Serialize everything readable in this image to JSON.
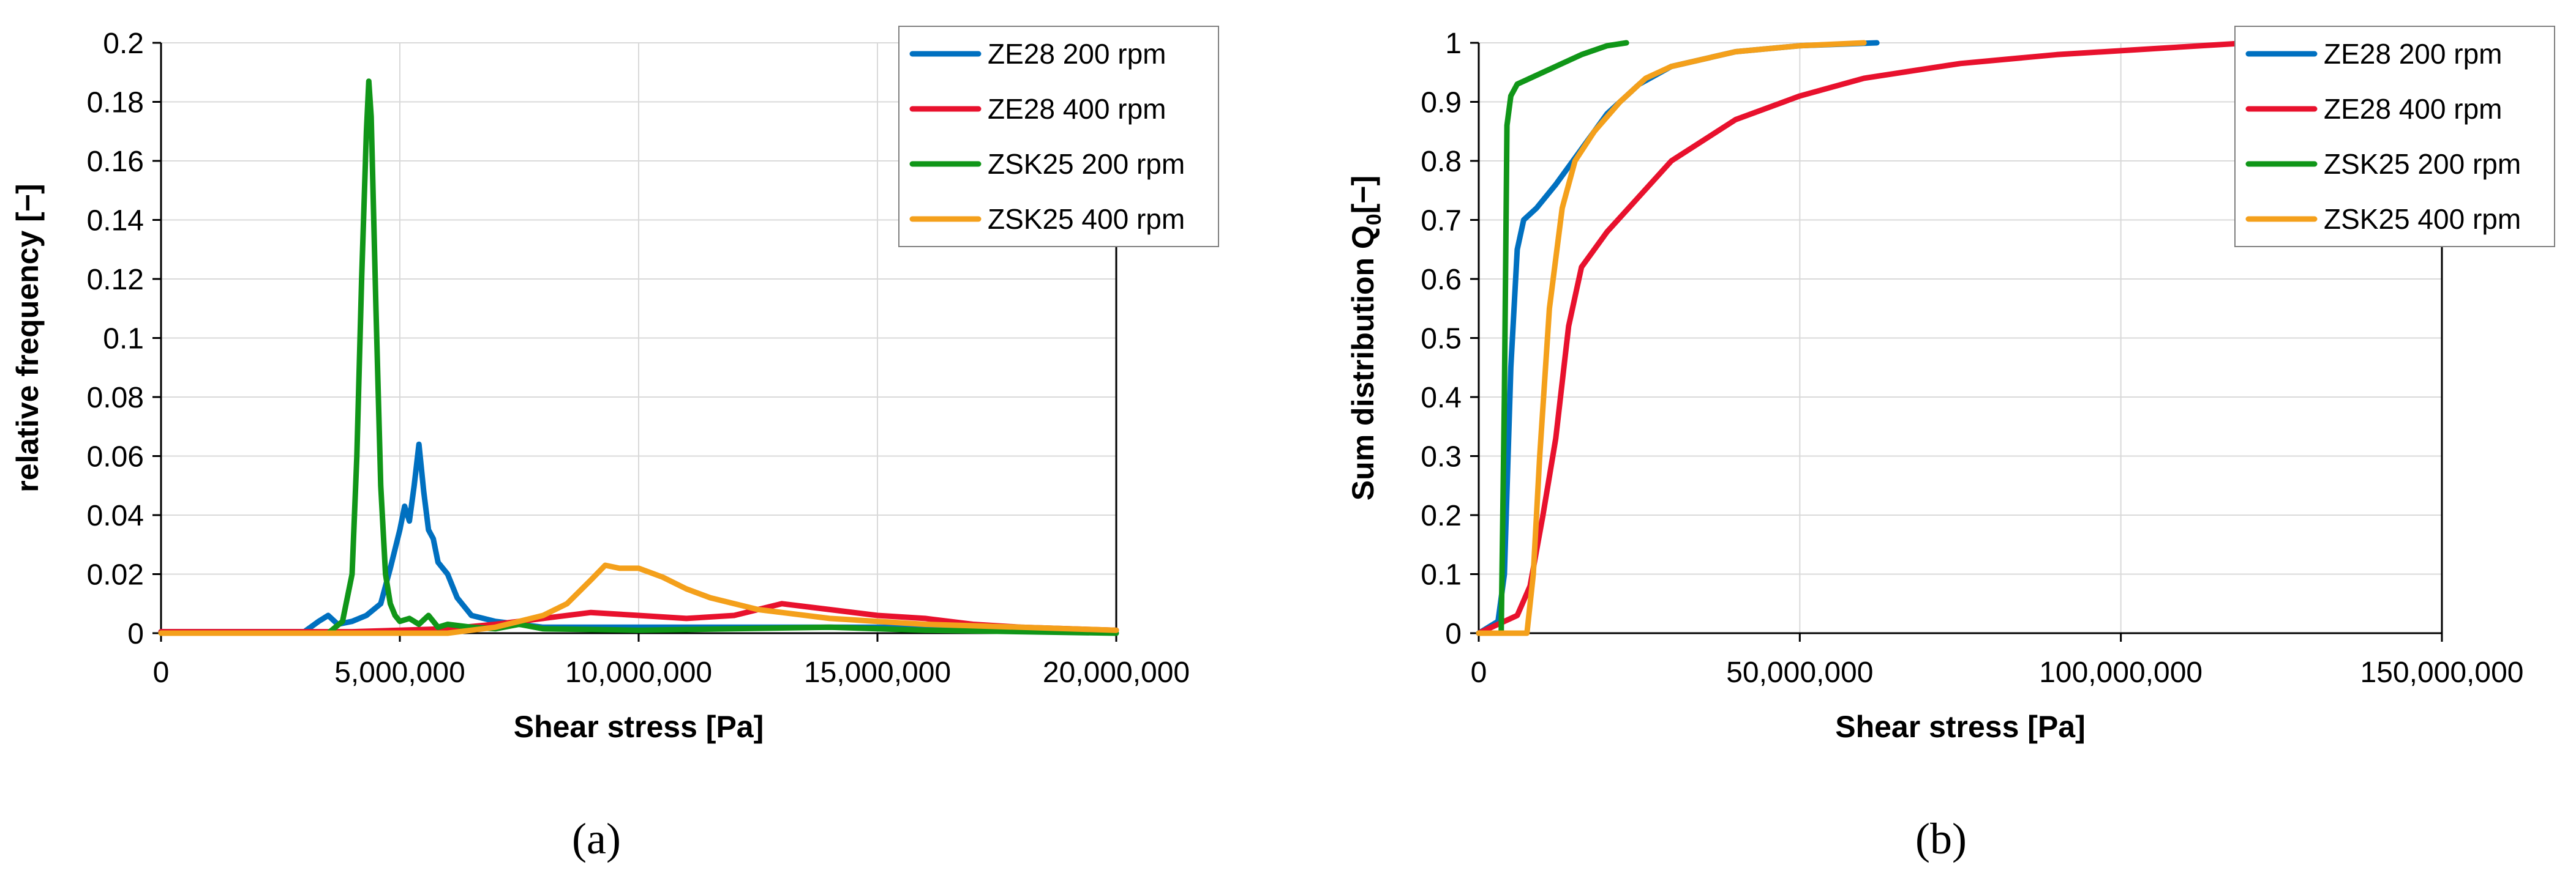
{
  "chart_data": [
    {
      "type": "line",
      "panel_label": "(a)",
      "title": "",
      "xlabel": "Shear stress [Pa]",
      "ylabel": "relative frequency [−]",
      "xlim": [
        0,
        20000000
      ],
      "ylim": [
        0,
        0.2
      ],
      "x_ticks": [
        0,
        5000000,
        10000000,
        15000000,
        20000000
      ],
      "x_tick_labels": [
        "0",
        "5,000,000",
        "10,000,000",
        "15,000,000",
        "20,000,000"
      ],
      "y_ticks": [
        0,
        0.02,
        0.04,
        0.06,
        0.08,
        0.1,
        0.12,
        0.14,
        0.16,
        0.18,
        0.2
      ],
      "y_tick_labels": [
        "0",
        "0.02",
        "0.04",
        "0.06",
        "0.08",
        "0.1",
        "0.12",
        "0.14",
        "0.16",
        "0.18",
        "0.2"
      ],
      "grid": true,
      "legend_position": "top-right",
      "series": [
        {
          "name": "ZE28 200 rpm",
          "color": "#0070C0",
          "x": [
            0,
            3000000,
            3300000,
            3500000,
            3700000,
            4000000,
            4300000,
            4600000,
            4800000,
            5000000,
            5100000,
            5200000,
            5300000,
            5400000,
            5500000,
            5600000,
            5700000,
            5800000,
            6000000,
            6200000,
            6500000,
            7000000,
            7500000,
            8000000,
            10000000,
            12000000,
            14000000,
            16000000,
            18000000,
            20000000
          ],
          "y": [
            0.0005,
            0.0005,
            0.004,
            0.006,
            0.003,
            0.004,
            0.006,
            0.01,
            0.022,
            0.035,
            0.043,
            0.038,
            0.05,
            0.064,
            0.048,
            0.035,
            0.032,
            0.024,
            0.02,
            0.012,
            0.006,
            0.004,
            0.003,
            0.002,
            0.002,
            0.002,
            0.002,
            0.002,
            0.001,
            0.001
          ]
        },
        {
          "name": "ZE28 400 rpm",
          "color": "#E8112D",
          "x": [
            0,
            2000000,
            4000000,
            6000000,
            7000000,
            8000000,
            9000000,
            10000000,
            11000000,
            12000000,
            12500000,
            13000000,
            13500000,
            14000000,
            15000000,
            16000000,
            17000000,
            18000000,
            19000000,
            20000000
          ],
          "y": [
            0.0005,
            0.0005,
            0.0005,
            0.0015,
            0.003,
            0.005,
            0.007,
            0.006,
            0.005,
            0.006,
            0.008,
            0.01,
            0.009,
            0.008,
            0.006,
            0.005,
            0.003,
            0.002,
            0.0015,
            0.001
          ]
        },
        {
          "name": "ZSK25 200 rpm",
          "color": "#109618",
          "x": [
            0,
            3500000,
            3800000,
            4000000,
            4100000,
            4200000,
            4300000,
            4350000,
            4400000,
            4500000,
            4600000,
            4700000,
            4800000,
            4900000,
            5000000,
            5200000,
            5400000,
            5600000,
            5800000,
            6000000,
            6500000,
            7000000,
            7500000,
            8000000,
            10000000,
            14000000,
            16000000,
            20000000
          ],
          "y": [
            0,
            0,
            0.004,
            0.02,
            0.06,
            0.12,
            0.17,
            0.187,
            0.175,
            0.11,
            0.05,
            0.02,
            0.01,
            0.006,
            0.004,
            0.005,
            0.003,
            0.006,
            0.002,
            0.003,
            0.002,
            0.0015,
            0.003,
            0.0015,
            0.001,
            0.002,
            0.001,
            0
          ]
        },
        {
          "name": "ZSK25 400 rpm",
          "color": "#F4A01B",
          "x": [
            0,
            6000000,
            7000000,
            8000000,
            8500000,
            9000000,
            9300000,
            9600000,
            10000000,
            10500000,
            11000000,
            11500000,
            12000000,
            12500000,
            13000000,
            14000000,
            15000000,
            16000000,
            18000000,
            20000000
          ],
          "y": [
            0,
            0,
            0.002,
            0.006,
            0.01,
            0.018,
            0.023,
            0.022,
            0.022,
            0.019,
            0.015,
            0.012,
            0.01,
            0.008,
            0.007,
            0.005,
            0.004,
            0.003,
            0.002,
            0.001
          ]
        }
      ]
    },
    {
      "type": "line",
      "panel_label": "(b)",
      "title": "",
      "xlabel": "Shear stress [Pa]",
      "ylabel": "Sum distribution Q",
      "ylabel_subscript": "0",
      "ylabel_suffix": "[−]",
      "xlim": [
        0,
        150000000
      ],
      "ylim": [
        0,
        1
      ],
      "x_ticks": [
        0,
        50000000,
        100000000,
        150000000
      ],
      "x_tick_labels": [
        "0",
        "50,000,000",
        "100,000,000",
        "150,000,000"
      ],
      "y_ticks": [
        0,
        0.1,
        0.2,
        0.3,
        0.4,
        0.5,
        0.6,
        0.7,
        0.8,
        0.9,
        1
      ],
      "y_tick_labels": [
        "0",
        "0.1",
        "0.2",
        "0.3",
        "0.4",
        "0.5",
        "0.6",
        "0.7",
        "0.8",
        "0.9",
        "1"
      ],
      "grid": true,
      "legend_position": "top-right",
      "series": [
        {
          "name": "ZE28 200 rpm",
          "color": "#0070C0",
          "x": [
            0,
            3000000,
            4000000,
            5000000,
            6000000,
            7000000,
            9000000,
            12000000,
            16000000,
            20000000,
            25000000,
            30000000,
            40000000,
            50000000,
            62000000
          ],
          "y": [
            0,
            0.02,
            0.1,
            0.45,
            0.65,
            0.7,
            0.72,
            0.76,
            0.82,
            0.88,
            0.93,
            0.96,
            0.985,
            0.995,
            1
          ]
        },
        {
          "name": "ZE28 400 rpm",
          "color": "#E8112D",
          "x": [
            0,
            4000000,
            6000000,
            8000000,
            10000000,
            12000000,
            14000000,
            16000000,
            20000000,
            25000000,
            30000000,
            40000000,
            50000000,
            60000000,
            75000000,
            90000000,
            105000000,
            120000000
          ],
          "y": [
            0,
            0.02,
            0.03,
            0.08,
            0.2,
            0.33,
            0.52,
            0.62,
            0.68,
            0.74,
            0.8,
            0.87,
            0.91,
            0.94,
            0.965,
            0.98,
            0.99,
            1
          ]
        },
        {
          "name": "ZSK25 200 rpm",
          "color": "#109618",
          "x": [
            0,
            3500000,
            4000000,
            4400000,
            5000000,
            6000000,
            8000000,
            12000000,
            16000000,
            20000000,
            23000000
          ],
          "y": [
            0,
            0,
            0.4,
            0.86,
            0.91,
            0.93,
            0.94,
            0.96,
            0.98,
            0.995,
            1
          ]
        },
        {
          "name": "ZSK25 400 rpm",
          "color": "#F4A01B",
          "x": [
            0,
            7500000,
            8500000,
            9500000,
            11000000,
            13000000,
            15000000,
            18000000,
            22000000,
            26000000,
            30000000,
            40000000,
            50000000,
            60000000
          ],
          "y": [
            0,
            0,
            0.1,
            0.3,
            0.55,
            0.72,
            0.8,
            0.85,
            0.9,
            0.94,
            0.96,
            0.985,
            0.995,
            1
          ]
        }
      ]
    }
  ]
}
